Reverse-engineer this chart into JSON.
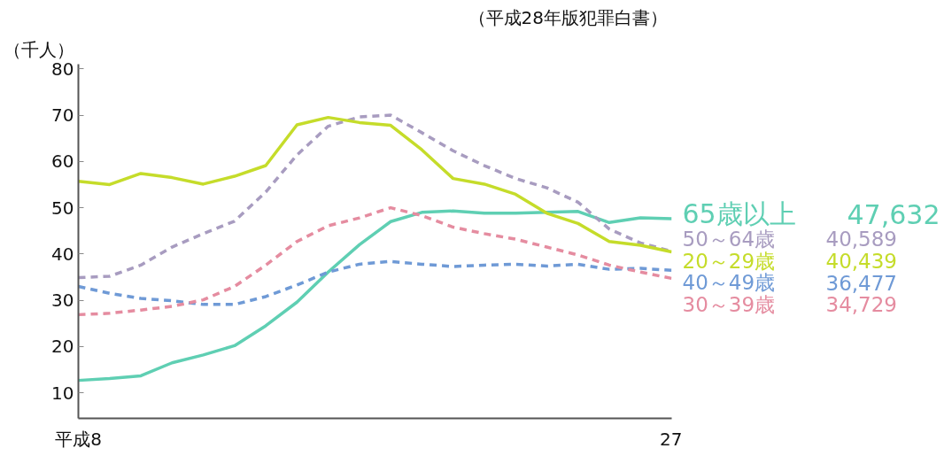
{
  "chart_data": {
    "type": "line",
    "ylabel": "（千人）",
    "annotations": [
      "（平成28年版犯罪白書）",
      "47,632",
      "40,589",
      "40,439",
      "36,477",
      "34,729"
    ],
    "categories": [
      "平成8",
      null,
      null,
      null,
      null,
      null,
      null,
      null,
      null,
      null,
      null,
      null,
      null,
      null,
      null,
      null,
      null,
      null,
      null,
      "27"
    ],
    "ylim": [
      4.5,
      81
    ],
    "yticks": [
      10,
      20,
      30,
      40,
      50,
      60,
      70,
      80
    ],
    "grid": false,
    "legend": false,
    "series": [
      {
        "name": "65歳以上",
        "color": "#5fcfb3",
        "line_style": "solid",
        "values": [
          12.7,
          13.1,
          13.7,
          16.5,
          18.2,
          20.2,
          24.5,
          29.6,
          36.1,
          42.0,
          47.0,
          49.0,
          49.3,
          48.8,
          48.8,
          49.0,
          49.2,
          46.8,
          47.8,
          47.632
        ]
      },
      {
        "name": "50～64歳",
        "color": "#a89cc0",
        "line_style": "dashed",
        "values": [
          34.9,
          35.2,
          37.6,
          41.5,
          44.4,
          47.1,
          53.4,
          61.4,
          67.6,
          69.6,
          70.0,
          66.2,
          62.3,
          59.1,
          56.3,
          54.3,
          51.2,
          45.4,
          42.4,
          40.589
        ]
      },
      {
        "name": "20～29歳",
        "color": "#c5dc2a",
        "line_style": "solid",
        "values": [
          55.7,
          55.0,
          57.4,
          56.5,
          55.1,
          56.8,
          59.1,
          67.9,
          69.5,
          68.4,
          67.8,
          62.5,
          56.3,
          55.1,
          52.9,
          48.8,
          46.6,
          42.7,
          41.9,
          40.439
        ]
      },
      {
        "name": "40～49歳",
        "color": "#6f9ad6",
        "line_style": "dashed",
        "values": [
          33.0,
          31.5,
          30.4,
          29.9,
          29.1,
          29.1,
          30.8,
          33.3,
          36.1,
          37.8,
          38.4,
          37.8,
          37.3,
          37.6,
          37.8,
          37.4,
          37.8,
          36.7,
          36.9,
          36.477
        ]
      },
      {
        "name": "30～39歳",
        "color": "#e58ca0",
        "line_style": "dashed",
        "values": [
          26.9,
          27.2,
          27.9,
          28.7,
          30.1,
          33.0,
          37.6,
          42.7,
          46.1,
          47.8,
          50.0,
          48.3,
          45.8,
          44.4,
          43.2,
          41.5,
          39.8,
          37.6,
          36.1,
          34.729
        ]
      }
    ]
  }
}
